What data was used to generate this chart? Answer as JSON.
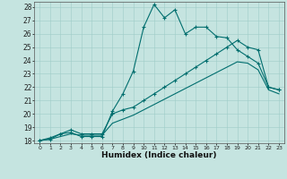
{
  "xlabel": "Humidex (Indice chaleur)",
  "background_color": "#c5e4e0",
  "grid_color": "#9eccc7",
  "line_color": "#006e6e",
  "xlim": [
    -0.5,
    23.5
  ],
  "ylim": [
    17.8,
    28.4
  ],
  "xticks": [
    0,
    1,
    2,
    3,
    4,
    5,
    6,
    7,
    8,
    9,
    10,
    11,
    12,
    13,
    14,
    15,
    16,
    17,
    18,
    19,
    20,
    21,
    22,
    23
  ],
  "yticks": [
    18,
    19,
    20,
    21,
    22,
    23,
    24,
    25,
    26,
    27,
    28
  ],
  "line1_x": [
    0,
    1,
    2,
    3,
    4,
    5,
    6,
    7,
    8,
    9,
    10,
    11,
    12,
    13,
    14,
    15,
    16,
    17,
    18,
    19,
    20,
    21,
    22,
    23
  ],
  "line1_y": [
    18.0,
    18.1,
    18.5,
    18.6,
    18.3,
    18.3,
    18.3,
    20.2,
    21.5,
    23.2,
    26.5,
    28.2,
    27.2,
    27.8,
    26.0,
    26.5,
    26.5,
    25.8,
    25.7,
    24.8,
    24.3,
    23.8,
    22.0,
    21.8
  ],
  "line2_x": [
    0,
    1,
    2,
    3,
    4,
    5,
    6,
    7,
    8,
    9,
    10,
    11,
    12,
    13,
    14,
    15,
    16,
    17,
    18,
    19,
    20,
    21,
    22,
    23
  ],
  "line2_y": [
    18.0,
    18.2,
    18.5,
    18.8,
    18.5,
    18.5,
    18.5,
    20.0,
    20.3,
    20.5,
    21.0,
    21.5,
    22.0,
    22.5,
    23.0,
    23.5,
    24.0,
    24.5,
    25.0,
    25.5,
    25.0,
    24.8,
    22.0,
    21.8
  ],
  "line3_x": [
    0,
    1,
    2,
    3,
    4,
    5,
    6,
    7,
    8,
    9,
    10,
    11,
    12,
    13,
    14,
    15,
    16,
    17,
    18,
    19,
    20,
    21,
    22,
    23
  ],
  "line3_y": [
    18.0,
    18.1,
    18.3,
    18.5,
    18.4,
    18.4,
    18.4,
    19.3,
    19.6,
    19.9,
    20.3,
    20.7,
    21.1,
    21.5,
    21.9,
    22.3,
    22.7,
    23.1,
    23.5,
    23.9,
    23.8,
    23.3,
    21.8,
    21.5
  ]
}
